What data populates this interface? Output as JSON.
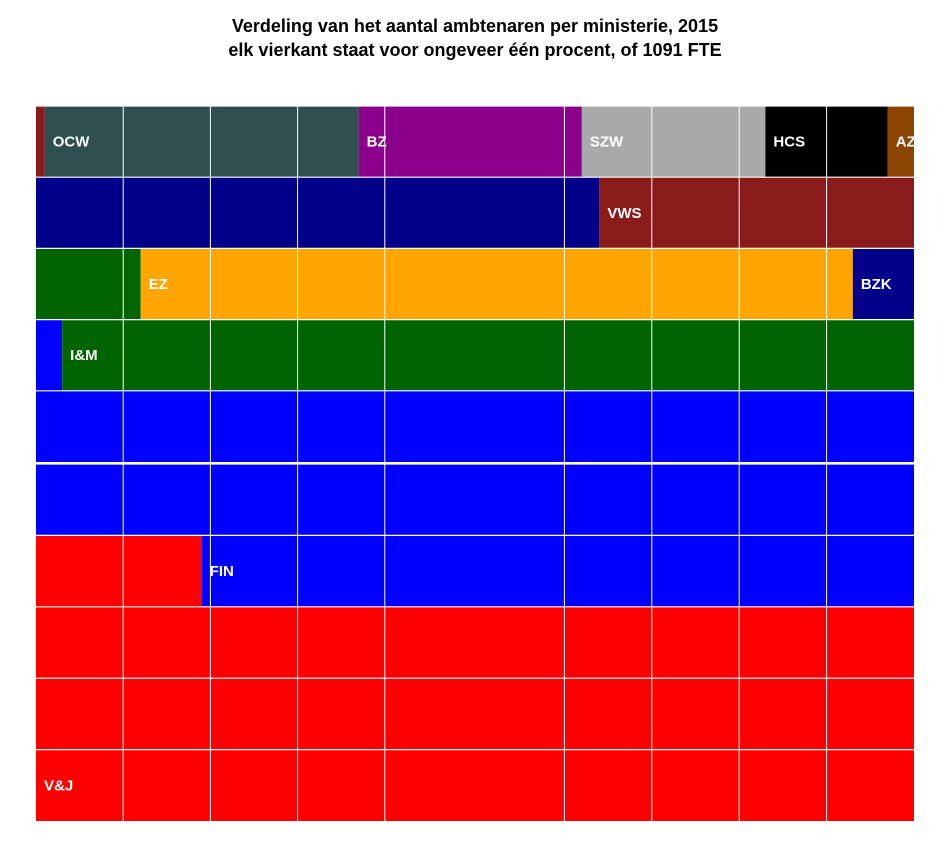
{
  "chart_data": {
    "type": "waffle",
    "title": "Verdeling van het aantal ambtenaren per ministerie, 2015",
    "subtitle": "elk vierkant staat voor ongeveer één procent, of 1091 FTE",
    "grid": {
      "rows": 10,
      "cols": 10,
      "unit": "percent"
    },
    "fill_order": "bottom-left to top-right, row by row",
    "series": [
      {
        "name": "V&J",
        "value": 31.9,
        "color": "#FF0000"
      },
      {
        "name": "FIN",
        "value": 28.4,
        "color": "#0000FF"
      },
      {
        "name": "I&M",
        "value": 10.9,
        "color": "#006400"
      },
      {
        "name": "EZ",
        "value": 8.1,
        "color": "#FFA500"
      },
      {
        "name": "BZK",
        "value": 7.1,
        "color": "#00008B"
      },
      {
        "name": "VWS",
        "value": 3.7,
        "color": "#8B1A1A"
      },
      {
        "name": "OCW",
        "value": 3.6,
        "color": "#2F4F4F"
      },
      {
        "name": "BZ",
        "value": 2.5,
        "color": "#8B008B"
      },
      {
        "name": "SZW",
        "value": 2.1,
        "color": "#A9A9A9"
      },
      {
        "name": "HCS",
        "value": 1.4,
        "color": "#000000"
      },
      {
        "name": "AZ",
        "value": 0.3,
        "color": "#8B4500"
      }
    ]
  }
}
